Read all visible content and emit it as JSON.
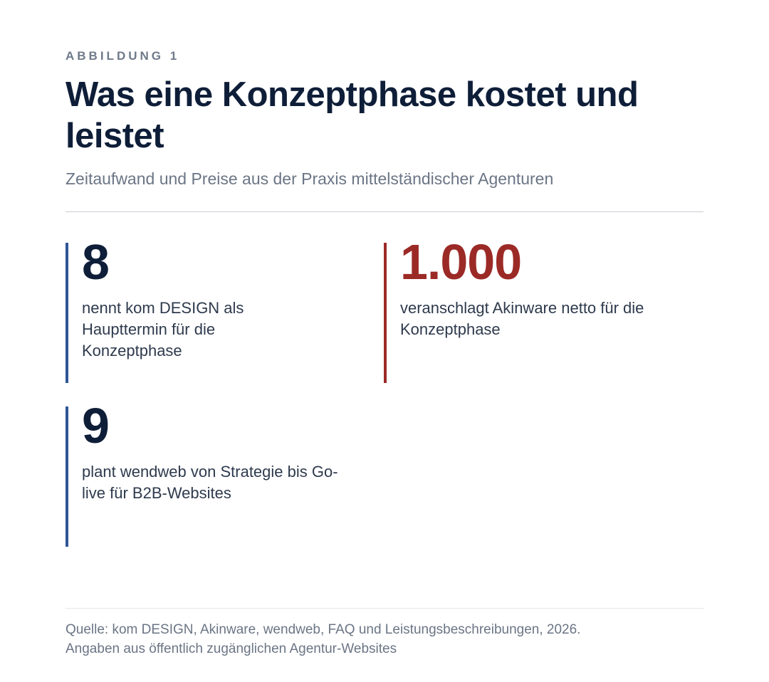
{
  "figure": {
    "eyebrow": "ABBILDUNG 1",
    "title": "Was eine Konzeptphase kostet und leistet",
    "subtitle": "Zeitaufwand und Preise aus der Praxis mittelständischer Agenturen"
  },
  "stats": [
    {
      "value": "8",
      "label": "nennt kom DESIGN als Haupttermin für die Konzeptphase",
      "accent": "#2f5596"
    },
    {
      "value": "1.000",
      "label": "veranschlagt Akinware netto für die Konzeptphase",
      "accent": "#9b2a26"
    },
    {
      "value": "9",
      "label": "plant wendweb von Strategie bis Go-live für B2B-Websites",
      "accent": "#2f5596"
    }
  ],
  "source": {
    "line1": "Quelle: kom DESIGN, Akinware, wendweb, FAQ und Leistungsbeschreibungen, 2026.",
    "line2": "Angaben aus öffentlich zugänglichen Agentur-Websites"
  }
}
